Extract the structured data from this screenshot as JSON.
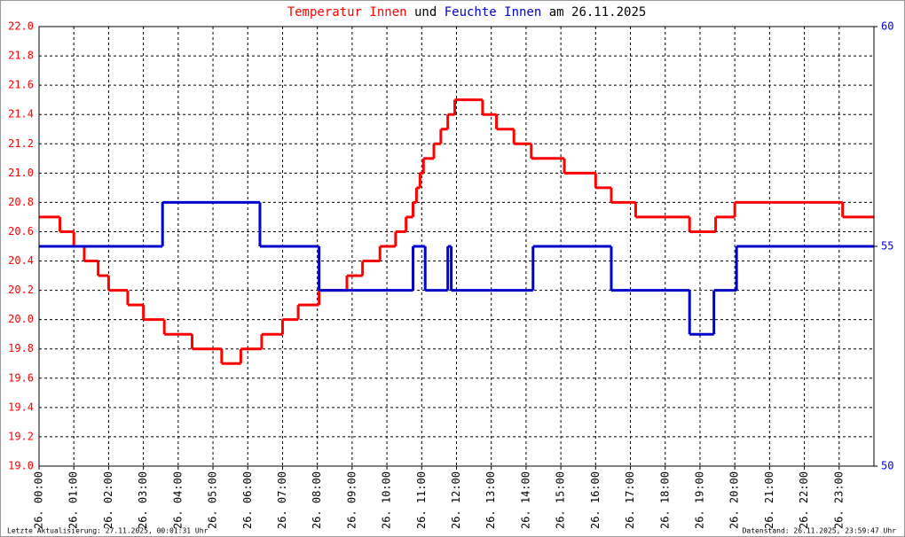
{
  "chart_data": {
    "type": "step-line",
    "title": [
      {
        "text": "Temperatur Innen",
        "color": "#ff0000"
      },
      {
        "text": "und",
        "color": "#000000"
      },
      {
        "text": "Feuchte Innen",
        "color": "#0000cc"
      },
      {
        "text": "am 26.11.2025",
        "color": "#000000"
      }
    ],
    "footer_left": "Letzte Aktualisierung: 27.11.2025, 00:01:31 Uhr",
    "footer_right": "Datenstand: 26.11.2025, 23:59:47 Uhr",
    "xlim": [
      0,
      24
    ],
    "xticks": [
      {
        "value": 0,
        "label": "26. 00:00"
      },
      {
        "value": 1,
        "label": "26. 01:00"
      },
      {
        "value": 2,
        "label": "26. 02:00"
      },
      {
        "value": 3,
        "label": "26. 03:00"
      },
      {
        "value": 4,
        "label": "26. 04:00"
      },
      {
        "value": 5,
        "label": "26. 05:00"
      },
      {
        "value": 6,
        "label": "26. 06:00"
      },
      {
        "value": 7,
        "label": "26. 07:00"
      },
      {
        "value": 8,
        "label": "26. 08:00"
      },
      {
        "value": 9,
        "label": "26. 09:00"
      },
      {
        "value": 10,
        "label": "26. 10:00"
      },
      {
        "value": 11,
        "label": "26. 11:00"
      },
      {
        "value": 12,
        "label": "26. 12:00"
      },
      {
        "value": 13,
        "label": "26. 13:00"
      },
      {
        "value": 14,
        "label": "26. 14:00"
      },
      {
        "value": 15,
        "label": "26. 15:00"
      },
      {
        "value": 16,
        "label": "26. 16:00"
      },
      {
        "value": 17,
        "label": "26. 17:00"
      },
      {
        "value": 18,
        "label": "26. 18:00"
      },
      {
        "value": 19,
        "label": "26. 19:00"
      },
      {
        "value": 20,
        "label": "26. 20:00"
      },
      {
        "value": 21,
        "label": "26. 21:00"
      },
      {
        "value": 22,
        "label": "26. 22:00"
      },
      {
        "value": 23,
        "label": "26. 23:00"
      }
    ],
    "ylim": [
      19,
      22
    ],
    "yticks": [
      {
        "value": 19,
        "label": "19.0"
      },
      19.2,
      19.4,
      19.6,
      19.8,
      {
        "value": 20,
        "label": "20.0"
      },
      20.2,
      20.4,
      20.6,
      20.8,
      {
        "value": 21,
        "label": "21.0"
      },
      21.2,
      21.4,
      21.6,
      21.8,
      {
        "value": 22,
        "label": "22.0"
      }
    ],
    "y2lim": [
      50,
      60
    ],
    "y2ticks": [
      50,
      55,
      60
    ],
    "grid": true,
    "series": [
      {
        "name": "Temperatur Innen",
        "color": "#ff0000",
        "x": [
          0,
          0.6,
          1.0,
          1.3,
          1.7,
          2.0,
          2.55,
          3.0,
          3.6,
          4.4,
          5.25,
          5.8,
          6.4,
          7.0,
          7.45,
          8.05,
          8.85,
          9.3,
          9.8,
          10.25,
          10.55,
          10.75,
          10.85,
          10.95,
          11.05,
          11.35,
          11.55,
          11.75,
          11.95,
          12.75,
          13.15,
          13.65,
          14.15,
          15.1,
          16.0,
          16.45,
          17.15,
          18.7,
          19.45,
          20.0,
          23.1
        ],
        "values": [
          20.7,
          20.6,
          20.5,
          20.4,
          20.3,
          20.2,
          20.1,
          20.0,
          19.9,
          19.8,
          19.7,
          19.8,
          19.9,
          20.0,
          20.1,
          20.2,
          20.3,
          20.4,
          20.5,
          20.6,
          20.7,
          20.8,
          20.9,
          21.0,
          21.1,
          21.2,
          21.3,
          21.4,
          21.5,
          21.4,
          21.3,
          21.2,
          21.1,
          21.0,
          20.9,
          20.8,
          20.7,
          20.6,
          20.7,
          20.8,
          20.7
        ]
      },
      {
        "name": "Feuchte Innen",
        "color": "#0000cc",
        "axis": "y2",
        "x": [
          0,
          3.55,
          6.35,
          8.05,
          10.75,
          11.1,
          11.75,
          11.85,
          14.2,
          16.45,
          18.7,
          19.4,
          20.05
        ],
        "values": [
          55,
          56,
          55,
          54,
          55,
          54,
          55,
          54,
          55,
          54,
          53,
          54,
          55
        ]
      }
    ]
  }
}
